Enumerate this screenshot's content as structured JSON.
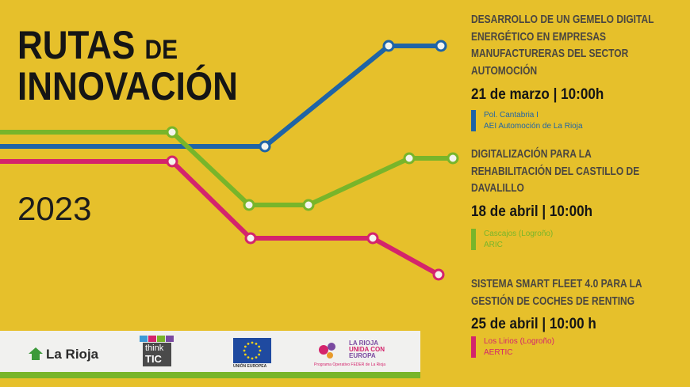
{
  "header": {
    "title_line1": "RUTAS",
    "title_connector": "DE",
    "title_line2": "INNOVACIÓN",
    "year": "2023"
  },
  "events": [
    {
      "title_lines": [
        "DESARROLLO DE UN GEMELO DIGITAL",
        "ENERGÉTICO EN EMPRESAS",
        "MANUFACTURERAS DEL SECTOR",
        "AUTOMOCIÓN"
      ],
      "date": "21 de marzo | 10:00h",
      "place_lines": [
        "Pol. Cantabria I",
        "AEI Automoción de La Rioja"
      ],
      "color": "#1f64a6"
    },
    {
      "title_lines": [
        "DIGITALIZACIÓN PARA LA",
        "REHABILITACIÓN DEL CASTILLO DE",
        "DAVALILLO"
      ],
      "date": "18 de abril | 10:00h",
      "place_lines": [
        "Cascajos (Logroño)",
        "ARIC"
      ],
      "color": "#78b52a"
    },
    {
      "title_lines": [
        "SISTEMA SMART FLEET 4.0 PARA LA",
        "GESTIÓN DE COCHES DE RENTING"
      ],
      "date": "25 de abril | 10:00 h",
      "place_lines": [
        "Los Lirios (Logroño)",
        "AERTIC"
      ],
      "color": "#d4246c"
    }
  ],
  "logos": {
    "la_rioja": "La Rioja",
    "think": "think",
    "tic": "TIC",
    "eu": "UNIÓN EUROPEA",
    "feder_line1": "LA RIOJA",
    "feder_line2": "UNIDA CON",
    "feder_line3": "EUROPA",
    "feder_caption": "Programa Operativo FEDER de La Rioja"
  }
}
